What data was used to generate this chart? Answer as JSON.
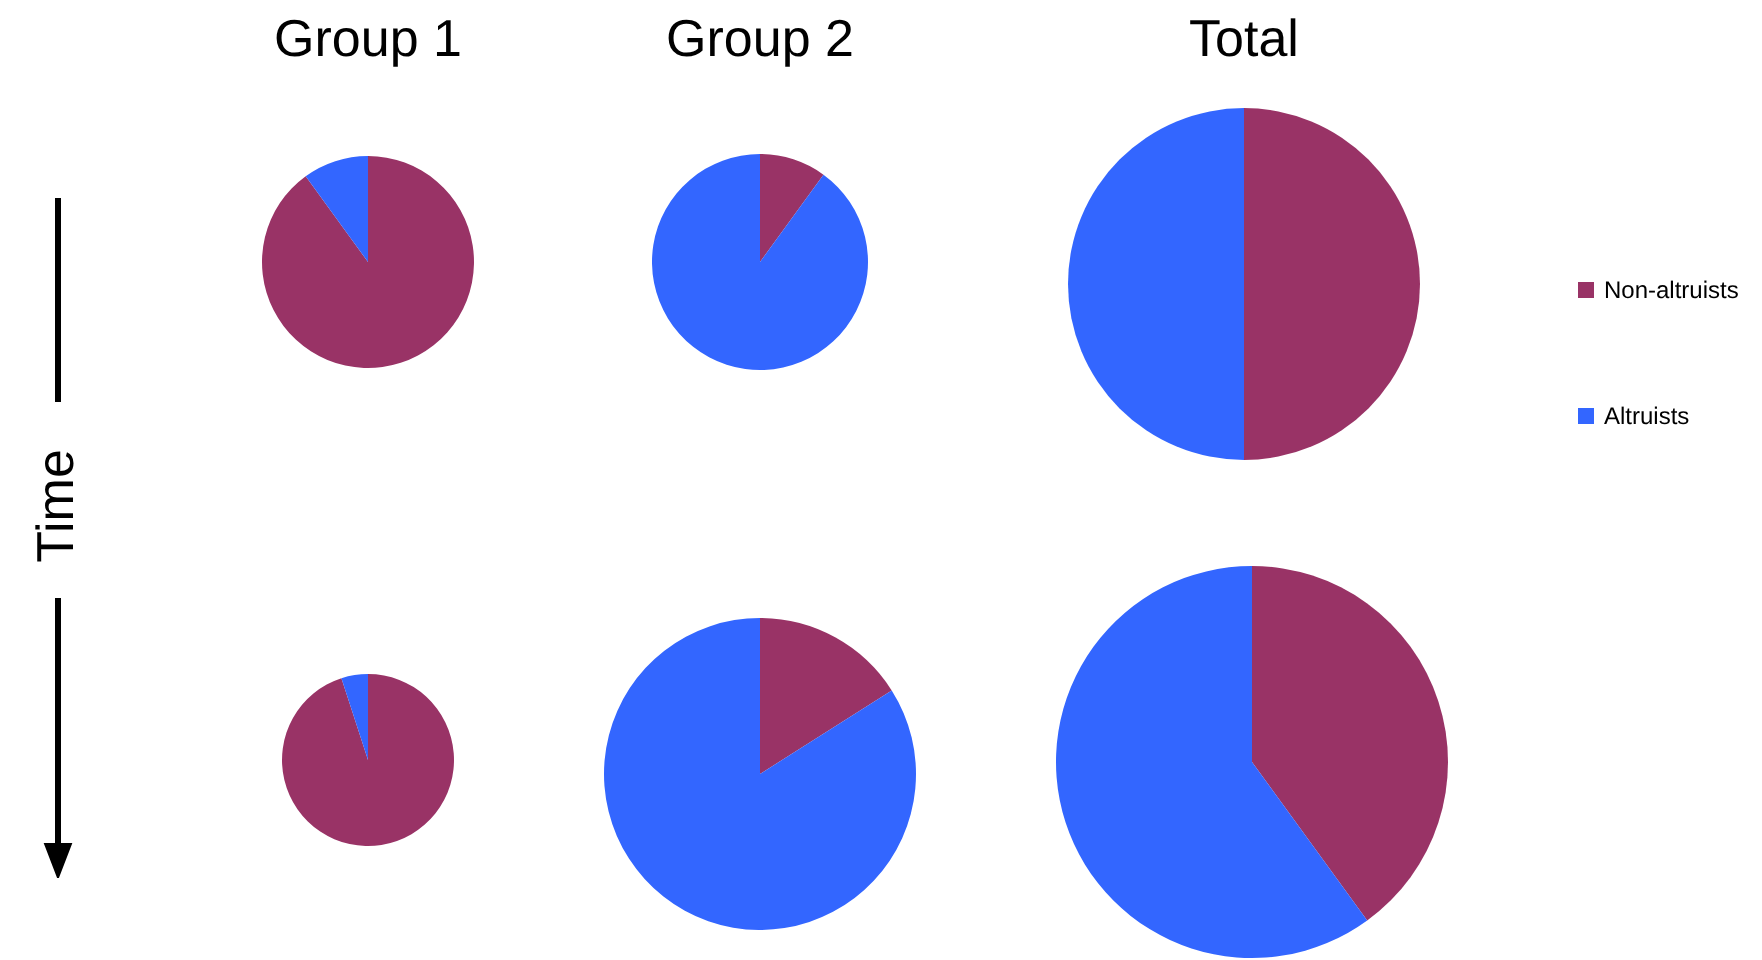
{
  "chart_data": [
    {
      "type": "pie",
      "title": "Group 1",
      "categories": [
        null,
        null
      ],
      "values": [
        90,
        10
      ],
      "colors": [
        "#993366",
        "#3366ff"
      ],
      "annotations": [
        "Time"
      ]
    },
    {
      "type": "pie",
      "title": "Group 2",
      "categories": [
        null,
        null
      ],
      "values": [
        10,
        90
      ],
      "colors": [
        "#993366",
        "#3366ff"
      ]
    },
    {
      "type": "pie",
      "title": "Total",
      "categories": [
        "Non-altruists",
        "Altruists"
      ],
      "values": [
        50,
        50
      ],
      "colors": [
        "#993366",
        "#3366ff"
      ],
      "legend": "right"
    },
    {
      "type": "pie",
      "categories": [
        null,
        null
      ],
      "values": [
        95,
        5
      ],
      "colors": [
        "#993366",
        "#3366ff"
      ]
    },
    {
      "type": "pie",
      "categories": [
        null,
        null
      ],
      "values": [
        16,
        84
      ],
      "colors": [
        "#993366",
        "#3366ff"
      ]
    },
    {
      "type": "pie",
      "categories": [
        null,
        null
      ],
      "values": [
        40,
        60
      ],
      "colors": [
        "#993366",
        "#3366ff"
      ]
    }
  ]
}
